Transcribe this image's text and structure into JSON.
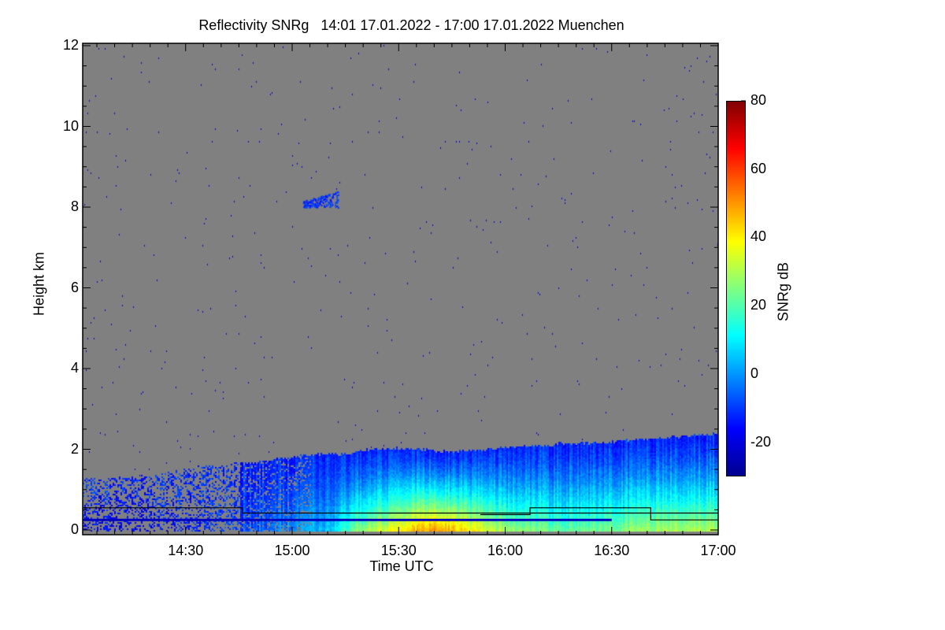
{
  "title": "Reflectivity SNRg   14:01 17.01.2022 - 17:00 17.01.2022 Muenchen",
  "chart_data": {
    "type": "heatmap",
    "title": "Reflectivity SNRg   14:01 17.01.2022 - 17:00 17.01.2022 Muenchen",
    "xlabel": "Time UTC",
    "ylabel": "Height km",
    "x_range_min": [
      841,
      1020
    ],
    "xticks": [
      {
        "min": 870,
        "label": "14:30"
      },
      {
        "min": 900,
        "label": "15:00"
      },
      {
        "min": 930,
        "label": "15:30"
      },
      {
        "min": 960,
        "label": "16:00"
      },
      {
        "min": 990,
        "label": "16:30"
      },
      {
        "min": 1020,
        "label": "17:00"
      }
    ],
    "ylim": [
      0,
      12
    ],
    "yticks": [
      0,
      2,
      4,
      6,
      8,
      10,
      12
    ],
    "colorbar": {
      "label": "SNRg dB",
      "range": [
        -30,
        80
      ],
      "ticks": [
        80,
        60,
        40,
        20,
        0,
        -20
      ],
      "colormap": "jet"
    },
    "background_color": "#808080",
    "cloud_top_km": {
      "t_min": [
        841,
        860,
        875,
        890,
        905,
        915,
        920,
        930,
        945,
        960,
        975,
        990,
        1005,
        1020
      ],
      "h": [
        1.3,
        1.35,
        1.6,
        1.7,
        1.9,
        1.9,
        2.0,
        2.05,
        1.95,
        2.05,
        2.15,
        2.2,
        2.3,
        2.4
      ]
    },
    "surface_snr_db": {
      "t_min": [
        841,
        865,
        885,
        900,
        910,
        918,
        930,
        940,
        950,
        960,
        975,
        990,
        1005,
        1020
      ],
      "v": [
        -18,
        -15,
        -8,
        0,
        5,
        25,
        40,
        52,
        40,
        28,
        22,
        25,
        30,
        32
      ]
    },
    "ice_patch": {
      "t_min": [
        903,
        913
      ],
      "h_km": [
        8.0,
        8.4
      ],
      "snr_db": -15
    },
    "lines": [
      {
        "color": "#000000",
        "points": [
          [
            841,
            0.55
          ],
          [
            886,
            0.55
          ],
          [
            886,
            0.42
          ],
          [
            1020,
            0.42
          ]
        ]
      },
      {
        "color": "#000000",
        "points": [
          [
            953,
            0.38
          ],
          [
            967,
            0.38
          ],
          [
            967,
            0.55
          ],
          [
            1001,
            0.55
          ],
          [
            1001,
            0.25
          ],
          [
            1020,
            0.25
          ]
        ]
      },
      {
        "color": "#0000c0",
        "points": [
          [
            841,
            0.25
          ],
          [
            990,
            0.25
          ]
        ]
      }
    ]
  }
}
